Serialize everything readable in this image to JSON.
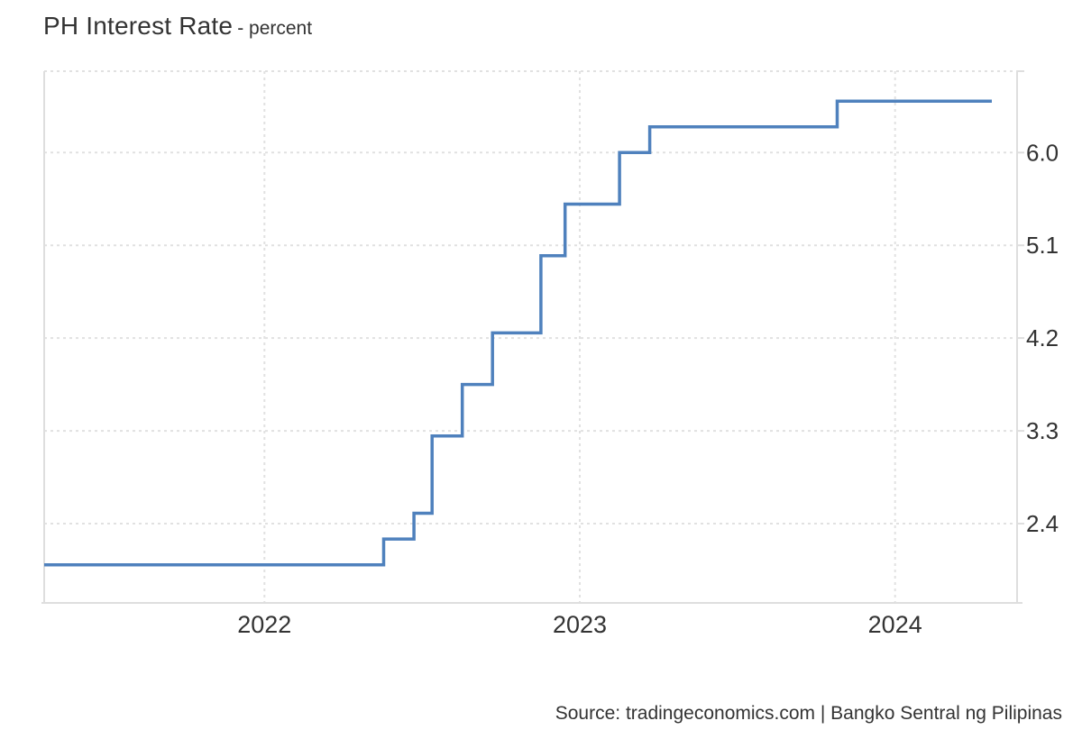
{
  "title": {
    "main": "PH Interest Rate",
    "subtitle": "- percent"
  },
  "source": "Source: tradingeconomics.com | Bangko Sentral ng Pilipinas",
  "colors": {
    "line": "#4f81bd",
    "grid": "#e1e1e1",
    "border": "#dedede",
    "text": "#333333",
    "background": "#ffffff"
  },
  "chart_data": {
    "type": "line",
    "step": "step-after",
    "title": "PH Interest Rate",
    "ylabel": "percent",
    "xlabel": "",
    "grid": "dotted",
    "legend": "none",
    "x_range": [
      "2021-04-21",
      "2024-04-22"
    ],
    "y_axis": {
      "side": "right",
      "range": [
        1.63,
        6.79
      ],
      "ticks": [
        {
          "value": 6.0,
          "label": "6.0"
        },
        {
          "value": 5.1,
          "label": "5.1"
        },
        {
          "value": 4.2,
          "label": "4.2"
        },
        {
          "value": 3.3,
          "label": "3.3"
        },
        {
          "value": 2.4,
          "label": "2.4"
        }
      ]
    },
    "x_axis": {
      "ticks": [
        {
          "value": "2022-01-01",
          "label": "2022"
        },
        {
          "value": "2023-01-01",
          "label": "2023"
        },
        {
          "value": "2024-01-01",
          "label": "2024"
        }
      ]
    },
    "series": [
      {
        "name": "PH Interest Rate",
        "color": "#4f81bd",
        "points": [
          {
            "date": "2021-04-21",
            "value": 2.0
          },
          {
            "date": "2022-05-19",
            "value": 2.25
          },
          {
            "date": "2022-06-23",
            "value": 2.5
          },
          {
            "date": "2022-07-14",
            "value": 3.25
          },
          {
            "date": "2022-08-18",
            "value": 3.75
          },
          {
            "date": "2022-09-22",
            "value": 4.25
          },
          {
            "date": "2022-11-17",
            "value": 5.0
          },
          {
            "date": "2022-12-15",
            "value": 5.5
          },
          {
            "date": "2023-02-16",
            "value": 6.0
          },
          {
            "date": "2023-03-23",
            "value": 6.25
          },
          {
            "date": "2023-10-26",
            "value": 6.5
          },
          {
            "date": "2024-04-22",
            "value": 6.5
          }
        ]
      }
    ]
  }
}
